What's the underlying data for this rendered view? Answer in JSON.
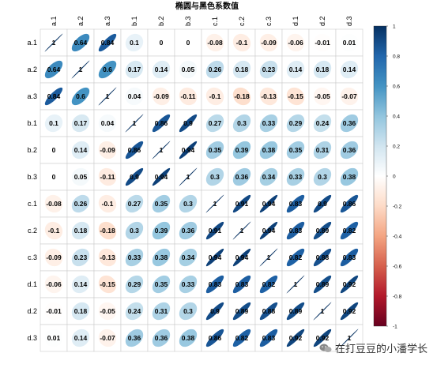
{
  "chart_data": {
    "type": "heatmap",
    "title": "椭圆与黑色系数值",
    "labels": [
      "a.1",
      "a.2",
      "a.3",
      "b.1",
      "b.2",
      "b.3",
      "c.1",
      "c.2",
      "c.3",
      "d.1",
      "d.2",
      "d.3"
    ],
    "matrix": [
      [
        1,
        0.64,
        0.84,
        0.1,
        0,
        0,
        -0.08,
        -0.1,
        -0.09,
        -0.06,
        -0.01,
        0.01
      ],
      [
        0.64,
        1,
        0.6,
        0.17,
        0.14,
        0.05,
        0.26,
        0.18,
        0.23,
        0.14,
        0.18,
        0.14
      ],
      [
        0.84,
        0.6,
        1,
        0.04,
        -0.09,
        -0.11,
        -0.1,
        -0.18,
        -0.13,
        -0.15,
        -0.05,
        -0.07
      ],
      [
        0.1,
        0.17,
        0.04,
        1,
        0.86,
        0.9,
        0.27,
        0.3,
        0.33,
        0.29,
        0.24,
        0.36
      ],
      [
        0,
        0.14,
        -0.09,
        0.86,
        1,
        0.94,
        0.35,
        0.39,
        0.38,
        0.35,
        0.31,
        0.36
      ],
      [
        0,
        0.05,
        -0.11,
        0.9,
        0.94,
        1,
        0.3,
        0.36,
        0.34,
        0.33,
        0.3,
        0.38
      ],
      [
        -0.08,
        0.26,
        -0.1,
        0.27,
        0.35,
        0.3,
        1,
        0.91,
        0.94,
        0.83,
        0.9,
        0.86
      ],
      [
        -0.1,
        0.18,
        -0.18,
        0.3,
        0.39,
        0.36,
        0.91,
        1,
        0.94,
        0.83,
        0.89,
        0.82
      ],
      [
        -0.09,
        0.23,
        -0.13,
        0.33,
        0.38,
        0.34,
        0.94,
        0.94,
        1,
        0.82,
        0.88,
        0.83
      ],
      [
        -0.06,
        0.14,
        -0.15,
        0.29,
        0.35,
        0.33,
        0.83,
        0.83,
        0.82,
        1,
        0.89,
        0.92
      ],
      [
        -0.01,
        0.18,
        -0.05,
        0.24,
        0.31,
        0.3,
        0.9,
        0.89,
        0.88,
        0.89,
        1,
        0.92
      ],
      [
        0.01,
        0.14,
        -0.07,
        0.36,
        0.36,
        0.38,
        0.86,
        0.82,
        0.83,
        0.92,
        0.92,
        1
      ]
    ],
    "colorbar": {
      "range": [
        -1,
        1
      ],
      "ticks": [
        "1",
        "0.8",
        "0.6",
        "0.4",
        "0.2",
        "0",
        "-0.2",
        "-0.4",
        "-0.6",
        "-0.8",
        "-1"
      ],
      "colors": {
        "negative": "#67001F",
        "neutral": "#FFFFFF",
        "positive": "#053061"
      }
    }
  },
  "watermark": {
    "text": "在打豆豆的小潘学长"
  }
}
